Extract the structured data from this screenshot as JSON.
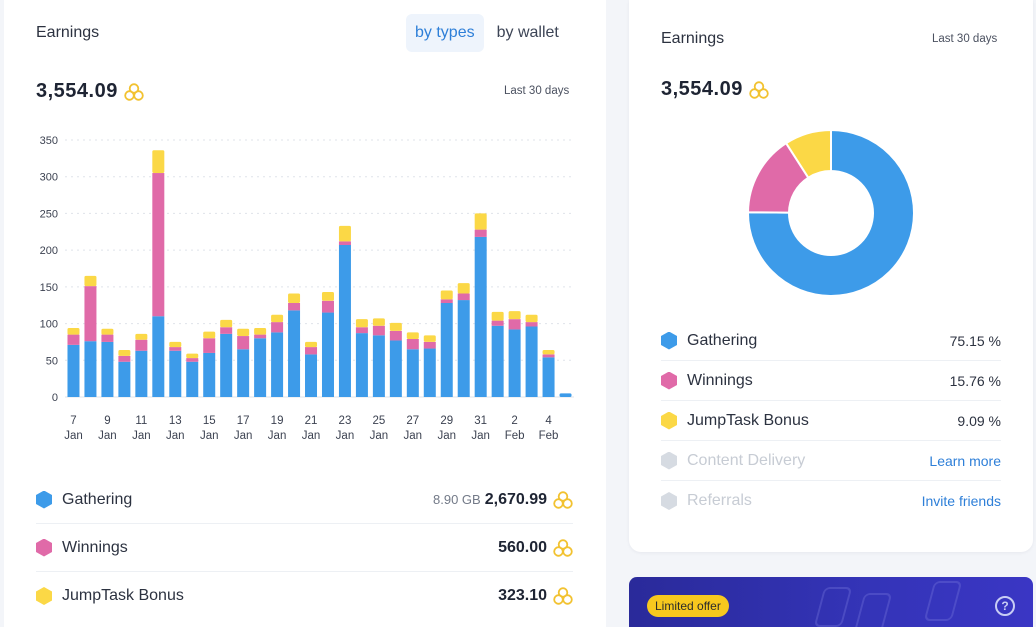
{
  "left": {
    "title": "Earnings",
    "tabs": [
      {
        "label": "by types",
        "active": true
      },
      {
        "label": "by wallet",
        "active": false
      }
    ],
    "total": "3,554.09",
    "period": "Last 30 days",
    "legend": [
      {
        "label": "Gathering",
        "extra": "8.90 GB",
        "amount": "2,670.99",
        "color": "#3d9be9",
        "icon": "hexagon-icon"
      },
      {
        "label": "Winnings",
        "extra": "",
        "amount": "560.00",
        "color": "#e06aa8",
        "icon": "hexagon-icon"
      },
      {
        "label": "JumpTask Bonus",
        "extra": "",
        "amount": "323.10",
        "color": "#fbd846",
        "icon": "hexagon-icon"
      }
    ]
  },
  "chart_data": [
    {
      "type": "bar",
      "stacked": true,
      "ylim": [
        0,
        350
      ],
      "yticks": [
        0,
        50,
        100,
        150,
        200,
        250,
        300,
        350
      ],
      "grid": true,
      "categories": [
        "7 Jan",
        "8 Jan",
        "9 Jan",
        "10 Jan",
        "11 Jan",
        "12 Jan",
        "13 Jan",
        "14 Jan",
        "15 Jan",
        "16 Jan",
        "17 Jan",
        "18 Jan",
        "19 Jan",
        "20 Jan",
        "21 Jan",
        "22 Jan",
        "23 Jan",
        "24 Jan",
        "25 Jan",
        "26 Jan",
        "27 Jan",
        "28 Jan",
        "29 Jan",
        "30 Jan",
        "31 Jan",
        "1 Feb",
        "2 Feb",
        "3 Feb",
        "4 Feb",
        "5 Feb"
      ],
      "xtick_labels": [
        {
          "day": "7",
          "month": "Jan"
        },
        {
          "day": "9",
          "month": "Jan"
        },
        {
          "day": "11",
          "month": "Jan"
        },
        {
          "day": "13",
          "month": "Jan"
        },
        {
          "day": "15",
          "month": "Jan"
        },
        {
          "day": "17",
          "month": "Jan"
        },
        {
          "day": "19",
          "month": "Jan"
        },
        {
          "day": "21",
          "month": "Jan"
        },
        {
          "day": "23",
          "month": "Jan"
        },
        {
          "day": "25",
          "month": "Jan"
        },
        {
          "day": "27",
          "month": "Jan"
        },
        {
          "day": "29",
          "month": "Jan"
        },
        {
          "day": "31",
          "month": "Jan"
        },
        {
          "day": "2",
          "month": "Feb"
        },
        {
          "day": "4",
          "month": "Feb"
        }
      ],
      "series": [
        {
          "name": "Gathering",
          "color": "#3d9be9",
          "values": [
            71,
            76,
            75,
            48,
            63,
            110,
            63,
            48,
            60,
            86,
            65,
            80,
            88,
            118,
            58,
            115,
            207,
            87,
            84,
            77,
            65,
            66,
            128,
            132,
            218,
            97,
            92,
            96,
            54,
            5
          ]
        },
        {
          "name": "Winnings",
          "color": "#e06aa8",
          "values": [
            14,
            75,
            10,
            8,
            15,
            195,
            5,
            5,
            20,
            9,
            18,
            5,
            14,
            10,
            10,
            16,
            5,
            8,
            13,
            13,
            14,
            9,
            5,
            9,
            10,
            7,
            14,
            6,
            4,
            0
          ]
        },
        {
          "name": "JumpTask Bonus",
          "color": "#fbd846",
          "values": [
            9,
            14,
            8,
            8,
            8,
            31,
            7,
            6,
            9,
            10,
            10,
            9,
            10,
            13,
            7,
            12,
            21,
            11,
            10,
            11,
            9,
            9,
            12,
            14,
            22,
            12,
            11,
            10,
            6,
            0
          ]
        }
      ]
    },
    {
      "type": "pie",
      "donut": true,
      "slices": [
        {
          "label": "Gathering",
          "value": 75.15,
          "color": "#3d9be9"
        },
        {
          "label": "Winnings",
          "value": 15.76,
          "color": "#e06aa8"
        },
        {
          "label": "JumpTask Bonus",
          "value": 9.09,
          "color": "#fbd846"
        }
      ]
    }
  ],
  "right": {
    "title": "Earnings",
    "period": "Last 30 days",
    "total": "3,554.09",
    "shares": [
      {
        "label": "Gathering",
        "value": "75.15 %",
        "color": "#3d9be9",
        "muted": false
      },
      {
        "label": "Winnings",
        "value": "15.76 %",
        "color": "#e06aa8",
        "muted": false
      },
      {
        "label": "JumpTask Bonus",
        "value": "9.09 %",
        "color": "#fbd846",
        "muted": false
      },
      {
        "label": "Content Delivery",
        "link": "Learn more",
        "color": "#d6dbe2",
        "muted": true
      },
      {
        "label": "Referrals",
        "link": "Invite friends",
        "color": "#d6dbe2",
        "muted": true
      }
    ]
  },
  "banner": {
    "pill": "Limited offer",
    "help": "?",
    "colors": {
      "pill": "#f7c81e",
      "background": "#3434b8"
    }
  },
  "icons": {
    "coin": "coin-cluster-icon",
    "help": "question-circle-icon"
  }
}
